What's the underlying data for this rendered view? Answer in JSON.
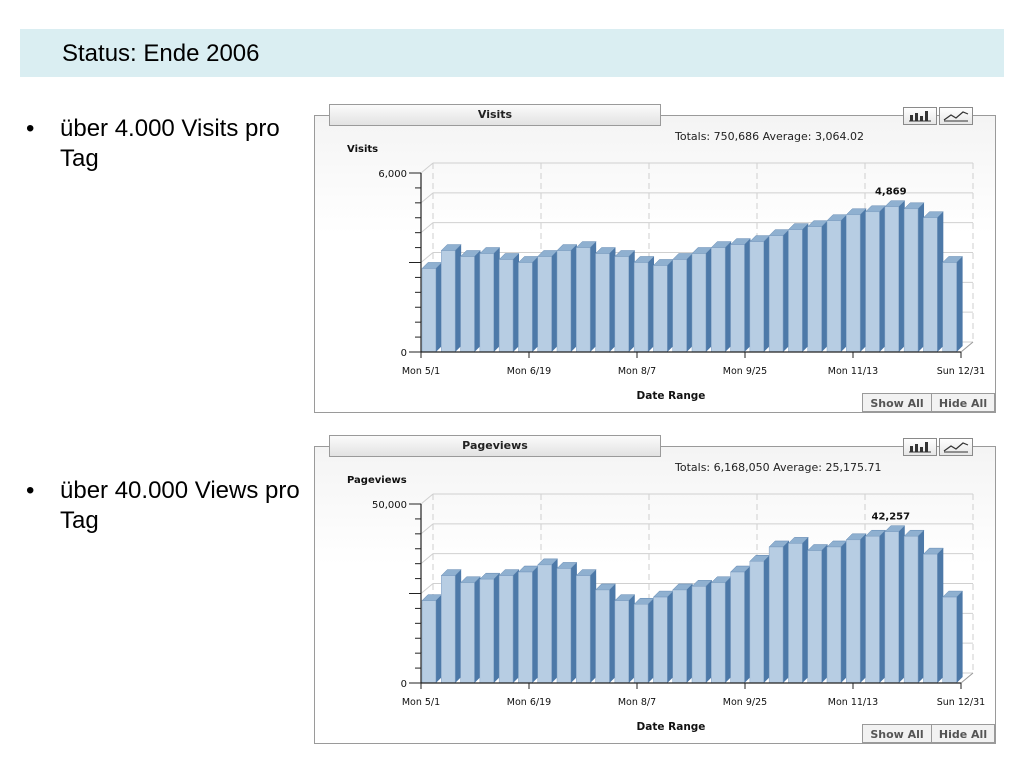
{
  "header": {
    "title": "Status: Ende 2006",
    "band_color": "#daeef2"
  },
  "bullets": [
    {
      "marker": "•",
      "text": "über 4.000 Visits pro Tag"
    },
    {
      "marker": "•",
      "text": "über 40.000 Views pro Tag"
    }
  ],
  "icons": {
    "bar_view": "bar-chart-icon",
    "line_view": "line-chart-icon"
  },
  "colors": {
    "bar_front": "#b7cde3",
    "bar_top": "#8fb0d0",
    "bar_side": "#4d79a8"
  },
  "chart_data": [
    {
      "type": "bar",
      "tab_title": "Visits",
      "title": "Visits",
      "totals_text": "Totals: 750,686   Average: 3,064.02",
      "ylabel": "Visits",
      "xlabel": "Date Range",
      "yticks": [
        "6,000",
        "0"
      ],
      "ylim": [
        0,
        6000
      ],
      "x_ticks": [
        "Mon 5/1",
        "Mon 6/19",
        "Mon 8/7",
        "Mon 9/25",
        "Mon 11/13",
        "Sun 12/31"
      ],
      "peak_label": "4,869",
      "peak_value": 4869,
      "buttons": {
        "show_all": "Show All",
        "hide_all": "Hide All"
      },
      "weekly_values": [
        2800,
        3400,
        3200,
        3300,
        3100,
        3000,
        3200,
        3400,
        3500,
        3300,
        3200,
        3000,
        2900,
        3100,
        3300,
        3500,
        3600,
        3700,
        3900,
        4100,
        4200,
        4400,
        4600,
        4700,
        4869,
        4800,
        4500,
        3000
      ]
    },
    {
      "type": "bar",
      "tab_title": "Pageviews",
      "title": "Pageviews",
      "totals_text": "Totals: 6,168,050   Average: 25,175.71",
      "ylabel": "Pageviews",
      "xlabel": "Date Range",
      "yticks": [
        "50,000",
        "0"
      ],
      "ylim": [
        0,
        50000
      ],
      "x_ticks": [
        "Mon 5/1",
        "Mon 6/19",
        "Mon 8/7",
        "Mon 9/25",
        "Mon 11/13",
        "Sun 12/31"
      ],
      "peak_label": "42,257",
      "peak_value": 42257,
      "buttons": {
        "show_all": "Show All",
        "hide_all": "Hide All"
      },
      "weekly_values": [
        23000,
        30000,
        28000,
        29000,
        30000,
        31000,
        33000,
        32000,
        30000,
        26000,
        23000,
        22000,
        24000,
        26000,
        27000,
        28000,
        31000,
        34000,
        38000,
        39000,
        37000,
        38000,
        40000,
        41000,
        42257,
        41000,
        36000,
        24000
      ]
    }
  ]
}
